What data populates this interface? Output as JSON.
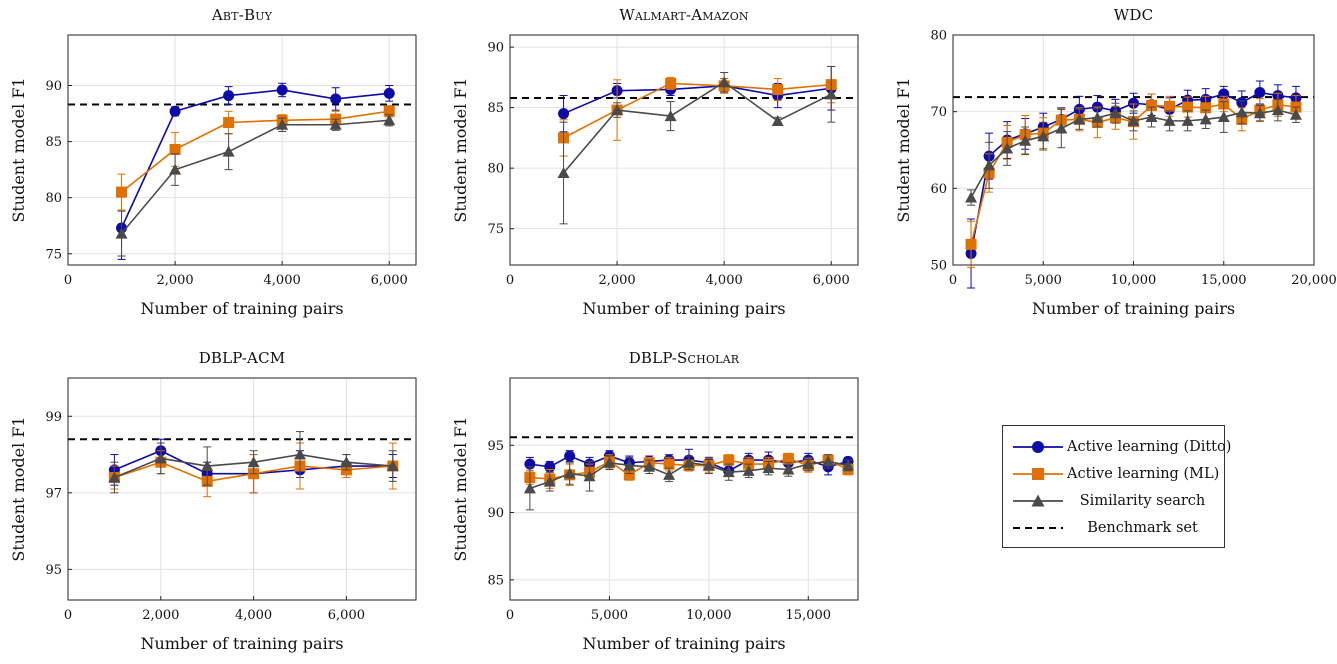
{
  "series_styles": [
    {
      "name": "Active learning (Ditto)",
      "color": "#0d0aa8",
      "marker": "circle"
    },
    {
      "name": "Active learning (ML)",
      "color": "#e07000",
      "marker": "square"
    },
    {
      "name": "Similarity search",
      "color": "#4a4a4a",
      "marker": "triangle"
    }
  ],
  "benchmark": {
    "name": "Benchmark set",
    "color": "#000000"
  },
  "chart_data": [
    {
      "type": "line",
      "title": "Abt-Buy",
      "xlabel": "Number of training pairs",
      "ylabel": "Student model F1",
      "xlim": [
        0,
        6500
      ],
      "ylim": [
        74,
        94.5
      ],
      "xticks": [
        0,
        2000,
        4000,
        6000
      ],
      "xtick_labels": [
        "0",
        "2,000",
        "4,000",
        "6,000"
      ],
      "yticks": [
        75,
        80,
        85,
        90
      ],
      "ytick_labels": [
        "75",
        "80",
        "85",
        "90"
      ],
      "grid": true,
      "benchmark": 88.3,
      "x": [
        1000,
        2000,
        3000,
        4000,
        5000,
        6000
      ],
      "series": [
        {
          "name": "Active learning (Ditto)",
          "values": [
            77.3,
            87.7,
            89.1,
            89.6,
            88.8,
            89.3
          ],
          "errors": [
            2.8,
            0.4,
            0.8,
            0.6,
            1.0,
            0.7
          ]
        },
        {
          "name": "Active learning (ML)",
          "values": [
            80.5,
            84.3,
            86.7,
            86.9,
            87.0,
            87.7
          ],
          "errors": [
            1.6,
            1.5,
            1.0,
            0.5,
            0.7,
            0.5
          ]
        },
        {
          "name": "Similarity search",
          "values": [
            76.8,
            82.5,
            84.1,
            86.5,
            86.5,
            86.9
          ],
          "errors": [
            2.0,
            1.4,
            1.6,
            0.6,
            0.5,
            0.5
          ]
        }
      ]
    },
    {
      "type": "line",
      "title": "Walmart-Amazon",
      "xlabel": "Number of training pairs",
      "ylabel": "Student model F1",
      "xlim": [
        0,
        6500
      ],
      "ylim": [
        72,
        91
      ],
      "xticks": [
        0,
        2000,
        4000,
        6000
      ],
      "xtick_labels": [
        "0",
        "2,000",
        "4,000",
        "6,000"
      ],
      "yticks": [
        75,
        80,
        85,
        90
      ],
      "ytick_labels": [
        "75",
        "80",
        "85",
        "90"
      ],
      "grid": true,
      "benchmark": 85.8,
      "x": [
        1000,
        2000,
        3000,
        4000,
        5000,
        6000
      ],
      "series": [
        {
          "name": "Active learning (Ditto)",
          "values": [
            84.5,
            86.4,
            86.5,
            86.8,
            86.0,
            86.6
          ],
          "errors": [
            1.5,
            0.6,
            0.5,
            0.6,
            1.0,
            1.8
          ]
        },
        {
          "name": "Active learning (ML)",
          "values": [
            82.5,
            84.8,
            87.0,
            86.8,
            86.5,
            86.9
          ],
          "errors": [
            1.5,
            2.5,
            0.5,
            0.6,
            0.9,
            1.5
          ]
        },
        {
          "name": "Similarity search",
          "values": [
            79.6,
            84.8,
            84.3,
            87.1,
            83.9,
            86.1
          ],
          "errors": [
            4.2,
            0.6,
            1.2,
            0.8,
            0.3,
            2.3
          ]
        }
      ]
    },
    {
      "type": "line",
      "title": "WDC",
      "xlabel": "Number of training pairs",
      "ylabel": "Student model F1",
      "xlim": [
        0,
        20000
      ],
      "ylim": [
        50,
        80
      ],
      "xticks": [
        0,
        5000,
        10000,
        15000,
        20000
      ],
      "xtick_labels": [
        "0",
        "5,000",
        "10,000",
        "15,000",
        "20,000"
      ],
      "yticks": [
        50,
        60,
        70,
        80
      ],
      "ytick_labels": [
        "50",
        "60",
        "70",
        "80"
      ],
      "grid": true,
      "benchmark": 71.9,
      "x": [
        1000,
        2000,
        3000,
        4000,
        5000,
        6000,
        7000,
        8000,
        9000,
        10000,
        11000,
        12000,
        13000,
        14000,
        15000,
        16000,
        17000,
        18000,
        19000
      ],
      "series": [
        {
          "name": "Active learning (Ditto)",
          "values": [
            51.5,
            64.2,
            66.3,
            67.1,
            68.0,
            69.0,
            70.3,
            70.6,
            70.1,
            71.1,
            70.9,
            70.3,
            71.5,
            71.6,
            72.3,
            71.2,
            72.5,
            72.1,
            71.8
          ],
          "errors": [
            4.5,
            3.0,
            2.4,
            2.0,
            1.8,
            1.5,
            1.7,
            1.5,
            1.5,
            1.3,
            1.4,
            1.5,
            1.3,
            1.4,
            1.0,
            1.5,
            1.5,
            1.4,
            1.5
          ]
        },
        {
          "name": "Active learning (ML)",
          "values": [
            52.7,
            62.0,
            66.0,
            67.0,
            67.2,
            68.9,
            69.0,
            68.6,
            69.2,
            68.7,
            70.8,
            70.7,
            70.6,
            70.5,
            71.0,
            69.0,
            70.2,
            70.9,
            70.6
          ],
          "errors": [
            3.0,
            2.5,
            2.2,
            2.5,
            2.0,
            1.5,
            1.5,
            2.0,
            1.5,
            2.3,
            1.5,
            1.3,
            1.3,
            1.5,
            1.0,
            1.5,
            1.5,
            1.5,
            1.5
          ]
        },
        {
          "name": "Similarity search",
          "values": [
            58.8,
            63.0,
            65.2,
            66.2,
            66.8,
            67.8,
            69.0,
            69.2,
            69.8,
            68.8,
            69.3,
            68.8,
            68.8,
            69.0,
            69.3,
            69.9,
            69.8,
            70.2,
            69.6
          ],
          "errors": [
            1.0,
            3.0,
            2.2,
            1.8,
            1.8,
            2.5,
            1.3,
            1.2,
            1.3,
            1.3,
            1.3,
            1.3,
            1.3,
            1.2,
            2.0,
            1.5,
            1.0,
            1.4,
            1.0
          ]
        }
      ]
    },
    {
      "type": "line",
      "title": "DBLP-ACM",
      "xlabel": "Number of training pairs",
      "ylabel": "Student model F1",
      "xlim": [
        0,
        7500
      ],
      "ylim": [
        94.2,
        100
      ],
      "xticks": [
        0,
        2000,
        4000,
        6000
      ],
      "xtick_labels": [
        "0",
        "2,000",
        "4,000",
        "6,000"
      ],
      "yticks": [
        95,
        97,
        99
      ],
      "ytick_labels": [
        "95",
        "97",
        "99"
      ],
      "grid": true,
      "benchmark": 98.4,
      "x": [
        1000,
        2000,
        3000,
        4000,
        5000,
        6000,
        7000
      ],
      "series": [
        {
          "name": "Active learning (Ditto)",
          "values": [
            97.6,
            98.1,
            97.5,
            97.5,
            97.6,
            97.7,
            97.7
          ],
          "errors": [
            0.4,
            0.3,
            0.3,
            0.5,
            0.5,
            0.3,
            0.3
          ]
        },
        {
          "name": "Active learning (ML)",
          "values": [
            97.4,
            97.8,
            97.3,
            97.5,
            97.7,
            97.6,
            97.7
          ],
          "errors": [
            0.3,
            0.3,
            0.4,
            0.5,
            0.6,
            0.2,
            0.6
          ]
        },
        {
          "name": "Similarity search",
          "values": [
            97.4,
            97.9,
            97.7,
            97.8,
            98.0,
            97.8,
            97.7
          ],
          "errors": [
            0.4,
            0.4,
            0.5,
            0.3,
            0.6,
            0.2,
            0.4
          ]
        }
      ]
    },
    {
      "type": "line",
      "title": "DBLP-Scholar",
      "xlabel": "Number of training pairs",
      "ylabel": "Student model F1",
      "xlim": [
        0,
        17500
      ],
      "ylim": [
        83.5,
        100
      ],
      "xticks": [
        0,
        5000,
        10000,
        15000
      ],
      "xtick_labels": [
        "0",
        "5,000",
        "10,000",
        "15,000"
      ],
      "yticks": [
        85,
        90,
        95
      ],
      "ytick_labels": [
        "85",
        "90",
        "95"
      ],
      "grid": true,
      "benchmark": 95.6,
      "x": [
        1000,
        2000,
        3000,
        4000,
        5000,
        6000,
        7000,
        8000,
        9000,
        10000,
        11000,
        12000,
        13000,
        14000,
        15000,
        16000,
        17000
      ],
      "series": [
        {
          "name": "Active learning (Ditto)",
          "values": [
            93.6,
            93.4,
            94.2,
            93.6,
            94.2,
            93.7,
            93.8,
            93.9,
            93.9,
            93.7,
            93.1,
            93.9,
            93.9,
            93.7,
            93.9,
            93.4,
            93.8
          ],
          "errors": [
            0.5,
            0.4,
            0.4,
            0.5,
            0.4,
            0.5,
            0.4,
            0.4,
            0.8,
            0.4,
            0.4,
            0.5,
            0.6,
            0.5,
            0.5,
            0.6,
            0.3
          ]
        },
        {
          "name": "Active learning (ML)",
          "values": [
            92.6,
            92.5,
            92.8,
            93.0,
            93.8,
            92.8,
            93.7,
            93.6,
            93.5,
            93.5,
            93.9,
            93.6,
            93.6,
            94.0,
            93.5,
            93.9,
            93.2
          ],
          "errors": [
            0.5,
            0.7,
            0.8,
            0.6,
            0.5,
            0.4,
            0.4,
            0.5,
            0.4,
            0.5,
            0.4,
            0.5,
            0.5,
            0.4,
            0.5,
            0.4,
            0.4
          ]
        },
        {
          "name": "Similarity search",
          "values": [
            91.8,
            92.3,
            92.9,
            92.7,
            93.7,
            93.5,
            93.4,
            92.8,
            93.7,
            93.5,
            93.0,
            93.1,
            93.3,
            93.2,
            93.6,
            93.8,
            93.5
          ],
          "errors": [
            1.6,
            0.7,
            0.8,
            1.1,
            0.5,
            0.6,
            0.5,
            0.5,
            0.5,
            0.6,
            0.6,
            0.5,
            0.5,
            0.5,
            0.5,
            0.5,
            0.4
          ]
        }
      ]
    }
  ]
}
